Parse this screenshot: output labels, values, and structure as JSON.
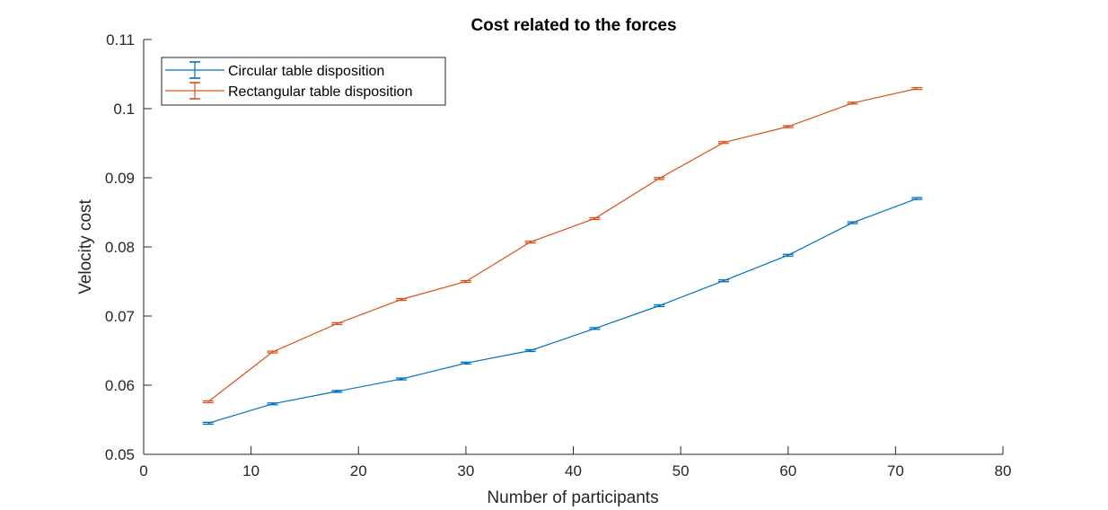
{
  "chart_data": {
    "type": "line",
    "title": "Cost related to the forces",
    "xlabel": "Number of participants",
    "ylabel": "Velocity cost",
    "xlim": [
      0,
      80
    ],
    "ylim": [
      0.05,
      0.11
    ],
    "xticks": [
      0,
      10,
      20,
      30,
      40,
      50,
      60,
      70,
      80
    ],
    "yticks": [
      0.05,
      0.06,
      0.07,
      0.08,
      0.09,
      0.1,
      0.11
    ],
    "xtick_labels": [
      "0",
      "10",
      "20",
      "30",
      "40",
      "50",
      "60",
      "70",
      "80"
    ],
    "ytick_labels": [
      "0.05",
      "0.06",
      "0.07",
      "0.08",
      "0.09",
      "0.1",
      "0.11"
    ],
    "grid": false,
    "legend_position": "top-left",
    "error_bars": true,
    "x": [
      6,
      12,
      18,
      24,
      30,
      36,
      42,
      48,
      54,
      60,
      66,
      72
    ],
    "series": [
      {
        "name": "Circular table disposition",
        "color": "#0072BD",
        "values": [
          0.0545,
          0.0573,
          0.0591,
          0.0609,
          0.0632,
          0.065,
          0.0682,
          0.0715,
          0.0751,
          0.0788,
          0.0835,
          0.087
        ]
      },
      {
        "name": "Rectangular table disposition",
        "color": "#D95319",
        "values": [
          0.0576,
          0.0648,
          0.0689,
          0.0724,
          0.075,
          0.0807,
          0.0841,
          0.0899,
          0.0951,
          0.0974,
          0.1008,
          0.1029
        ]
      }
    ]
  }
}
